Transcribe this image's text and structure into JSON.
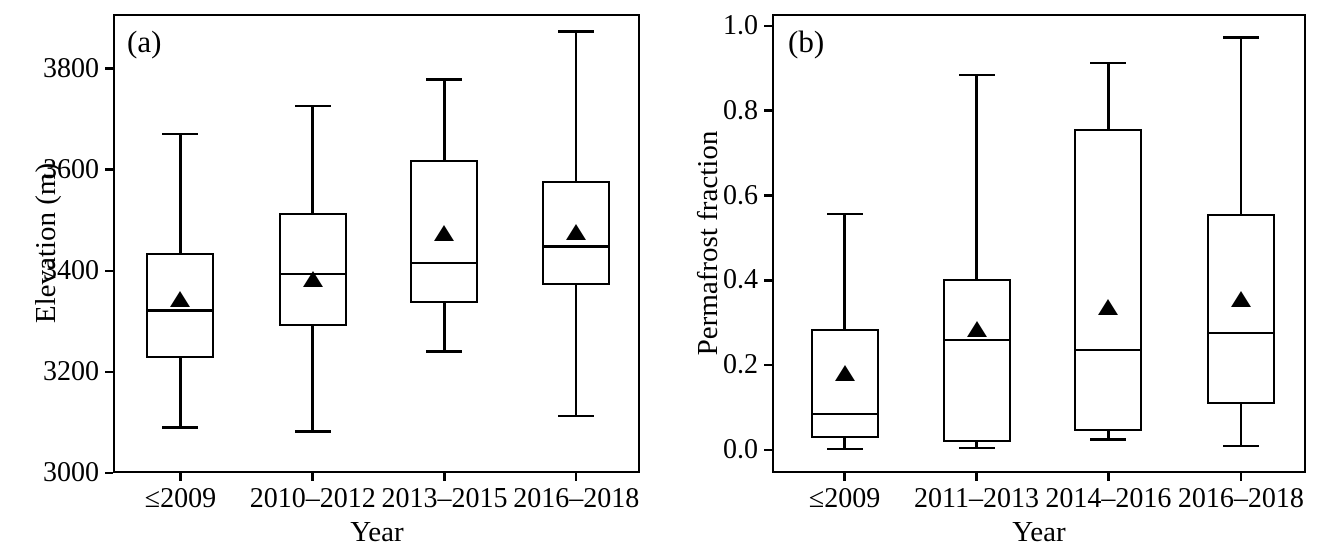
{
  "chart_data": [
    {
      "type": "boxplot",
      "panel_label": "(a)",
      "xlabel": "Year",
      "ylabel": "Elevation (m)",
      "ylim": [
        3000,
        3908
      ],
      "yticks": [
        3000,
        3200,
        3400,
        3600,
        3800
      ],
      "ytick_labels": [
        "3000",
        "3200",
        "3400",
        "3600",
        "3800"
      ],
      "categories": [
        "≤2009",
        "2010–2012",
        "2013–2015",
        "2016–2018"
      ],
      "boxes": [
        {
          "category": "≤2009",
          "whislo": 3090,
          "q1": 3228,
          "median": 3321,
          "mean": 3345,
          "q3": 3435,
          "whishi": 3671
        },
        {
          "category": "2010–2012",
          "whislo": 3082,
          "q1": 3291,
          "median": 3394,
          "mean": 3384,
          "q3": 3515,
          "whishi": 3726
        },
        {
          "category": "2013–2015",
          "whislo": 3240,
          "q1": 3337,
          "median": 3415,
          "mean": 3474,
          "q3": 3620,
          "whishi": 3778
        },
        {
          "category": "2016–2018",
          "whislo": 3113,
          "q1": 3371,
          "median": 3448,
          "mean": 3477,
          "q3": 3577,
          "whishi": 3873
        }
      ],
      "mean_marker": "filled-up-triangle",
      "line_color": "#000000",
      "background": "#ffffff",
      "grid": false,
      "legend": "none"
    },
    {
      "type": "boxplot",
      "panel_label": "(b)",
      "xlabel": "Year",
      "ylabel": "Permafrost fraction",
      "ylim": [
        -0.054,
        1.028
      ],
      "yticks": [
        0.0,
        0.2,
        0.4,
        0.6,
        0.8,
        1.0
      ],
      "ytick_labels": [
        "0.0",
        "0.2",
        "0.4",
        "0.6",
        "0.8",
        "1.0"
      ],
      "categories": [
        "≤2009",
        "2011–2013",
        "2014–2016",
        "2016–2018"
      ],
      "boxes": [
        {
          "category": "≤2009",
          "whislo": 0.002,
          "q1": 0.028,
          "median": 0.085,
          "mean": 0.182,
          "q3": 0.286,
          "whishi": 0.557
        },
        {
          "category": "2011–2013",
          "whislo": 0.005,
          "q1": 0.02,
          "median": 0.259,
          "mean": 0.286,
          "q3": 0.403,
          "whishi": 0.884
        },
        {
          "category": "2014–2016",
          "whislo": 0.025,
          "q1": 0.046,
          "median": 0.236,
          "mean": 0.338,
          "q3": 0.757,
          "whishi": 0.912
        },
        {
          "category": "2016–2018",
          "whislo": 0.01,
          "q1": 0.108,
          "median": 0.276,
          "mean": 0.357,
          "q3": 0.557,
          "whishi": 0.973
        }
      ],
      "mean_marker": "filled-up-triangle",
      "line_color": "#000000",
      "background": "#ffffff",
      "grid": false,
      "legend": "none"
    }
  ]
}
